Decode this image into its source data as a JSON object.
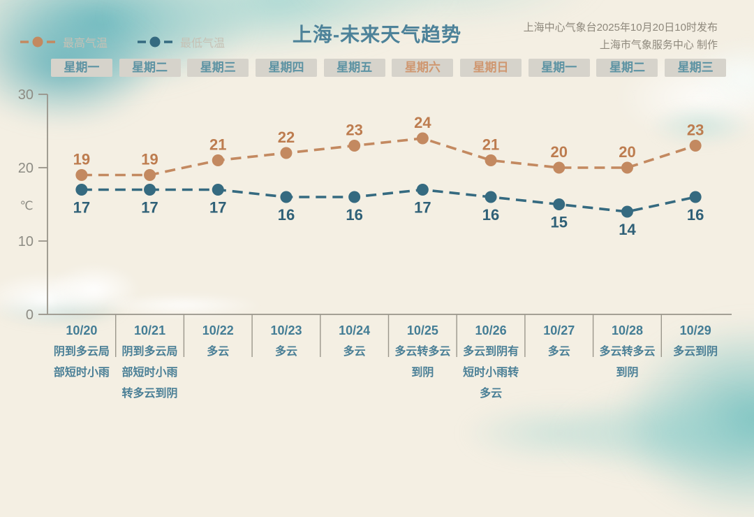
{
  "title": "上海-未来天气趋势",
  "source": {
    "line1": "上海中心气象台2025年10月20日10时发布",
    "line2": "上海市气象服务中心 制作"
  },
  "colors": {
    "background": "#f4efe3",
    "high_series": "#c38960",
    "high_label": "#bd7c4f",
    "low_series": "#356a80",
    "low_label": "#2f6077",
    "axis": "#98948a",
    "weekday_text": "#5d93a3",
    "weekend_text": "#cf9770",
    "button_bg": "#d6d3cb",
    "date_text": "#447d95",
    "title_text": "#4d8299"
  },
  "legend": [
    {
      "label": "最高气温",
      "color": "#c38960"
    },
    {
      "label": "最低气温",
      "color": "#356a80"
    }
  ],
  "weekdays": [
    {
      "label": "星期一",
      "weekend": false
    },
    {
      "label": "星期二",
      "weekend": false
    },
    {
      "label": "星期三",
      "weekend": false
    },
    {
      "label": "星期四",
      "weekend": false
    },
    {
      "label": "星期五",
      "weekend": false
    },
    {
      "label": "星期六",
      "weekend": true
    },
    {
      "label": "星期日",
      "weekend": true
    },
    {
      "label": "星期一",
      "weekend": false
    },
    {
      "label": "星期二",
      "weekend": false
    },
    {
      "label": "星期三",
      "weekend": false
    }
  ],
  "y_axis": {
    "unit": "℃",
    "ticks": [
      0,
      10,
      20,
      30
    ],
    "min": 0,
    "max": 30
  },
  "chart_data": {
    "type": "line",
    "title": "上海-未来天气趋势",
    "xlabel": "",
    "ylabel": "℃",
    "ylim": [
      0,
      30
    ],
    "grid": false,
    "legend_position": "top-left",
    "categories": [
      "10/20",
      "10/21",
      "10/22",
      "10/23",
      "10/24",
      "10/25",
      "10/26",
      "10/27",
      "10/28",
      "10/29"
    ],
    "series": [
      {
        "name": "最高气温",
        "values": [
          19,
          19,
          21,
          22,
          23,
          24,
          21,
          20,
          20,
          23
        ],
        "color": "#c38960",
        "label_color": "#bd7c4f",
        "label_position": "above",
        "style": "dashed"
      },
      {
        "name": "最低气温",
        "values": [
          17,
          17,
          17,
          16,
          16,
          17,
          16,
          15,
          14,
          16
        ],
        "color": "#356a80",
        "label_color": "#2f6077",
        "label_position": "below",
        "style": "dashed"
      }
    ]
  },
  "table": {
    "dates": [
      "10/20",
      "10/21",
      "10/22",
      "10/23",
      "10/24",
      "10/25",
      "10/26",
      "10/27",
      "10/28",
      "10/29"
    ],
    "weather": [
      "阴到多云局部短时小雨",
      "阴到多云局部短时小雨转多云到阴",
      "多云",
      "多云",
      "多云",
      "多云转多云到阴",
      "多云到阴有短时小雨转多云",
      "多云",
      "多云转多云到阴",
      "多云到阴"
    ]
  }
}
